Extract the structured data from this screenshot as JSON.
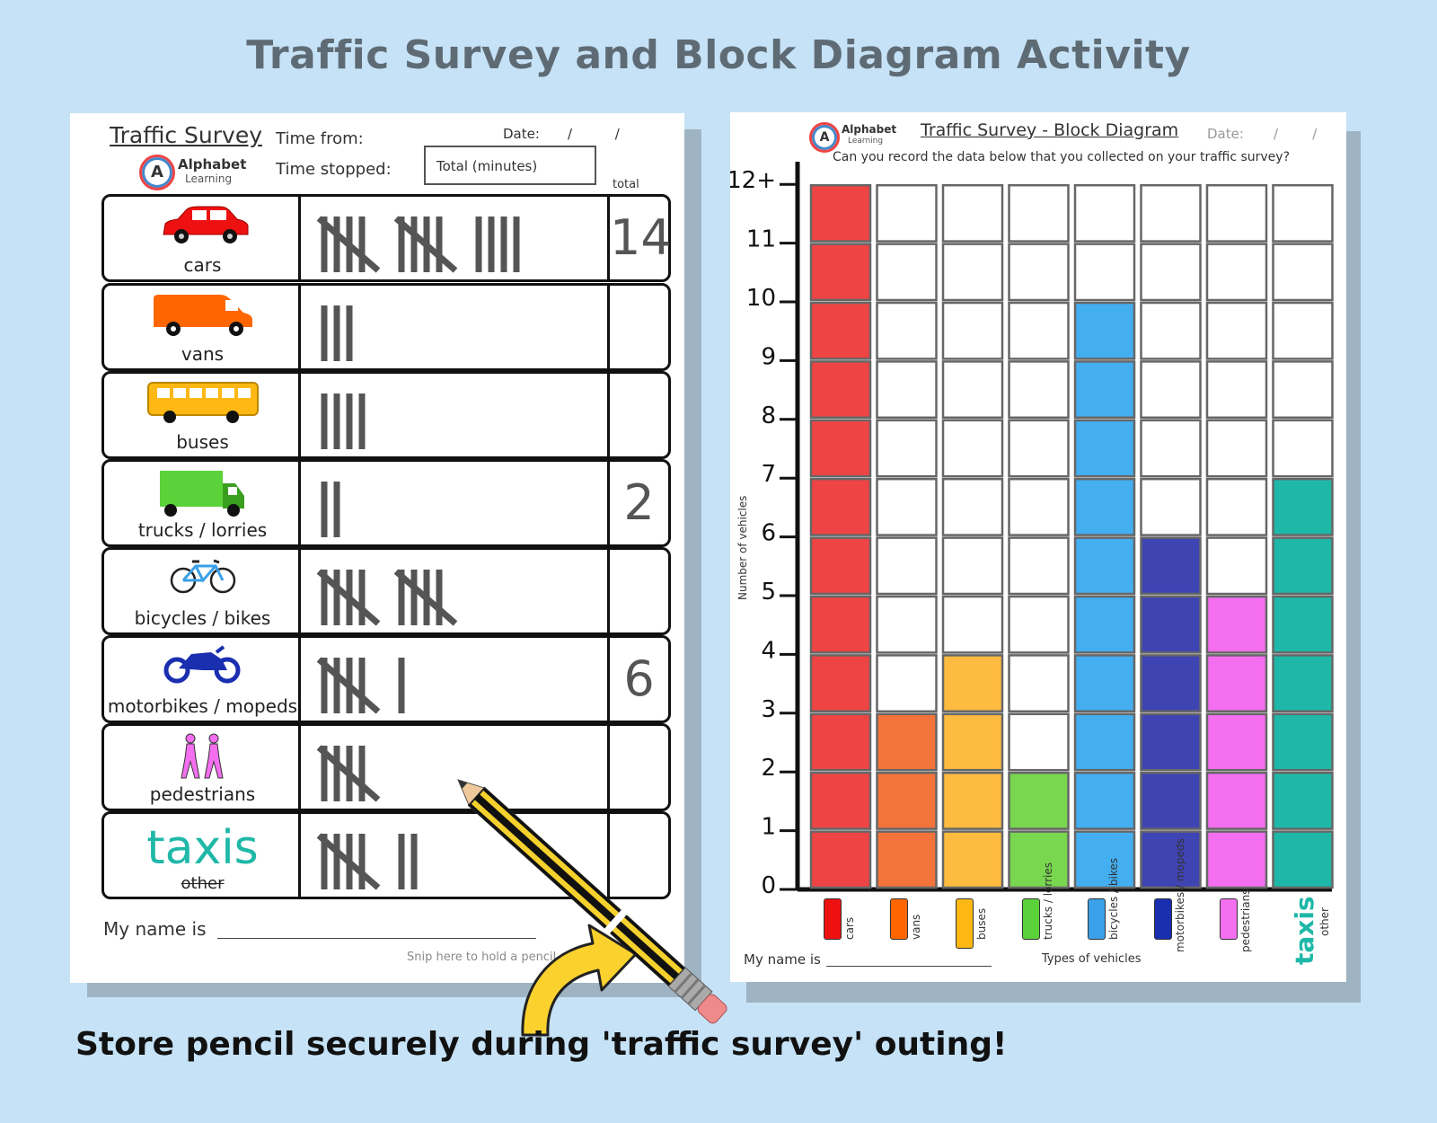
{
  "title": "Traffic Survey and Block Diagram Activity",
  "footer": "Store pencil securely during 'traffic survey' outing!",
  "survey": {
    "title": "Traffic Survey",
    "time_from": "Time from:",
    "time_stopped": "Time stopped:",
    "date_label": "Date:",
    "date_sep": "/          /",
    "total_minutes": "Total (minutes)",
    "total_header": "total",
    "brand": "Alphabet",
    "brand_sub": "Learning",
    "logo_letter": "A",
    "name_label": "My name is",
    "snip": "Snip here to hold a pencil",
    "rows": [
      {
        "label": "cars",
        "tally": 14,
        "total": "14",
        "icon": "car-icon"
      },
      {
        "label": "vans",
        "tally": 3,
        "total": "",
        "icon": "van-icon"
      },
      {
        "label": "buses",
        "tally": 4,
        "total": "",
        "icon": "bus-icon"
      },
      {
        "label": "trucks / lorries",
        "tally": 2,
        "total": "2",
        "icon": "truck-icon"
      },
      {
        "label": "bicycles / bikes",
        "tally": 10,
        "total": "",
        "icon": "bicycle-icon"
      },
      {
        "label": "motorbikes / mopeds",
        "tally": 6,
        "total": "6",
        "icon": "motorbike-icon"
      },
      {
        "label": "pedestrians",
        "tally": 5,
        "total": "",
        "icon": "pedestrians-icon"
      },
      {
        "label": "taxis",
        "sub": "other",
        "tally": 7,
        "total": "",
        "icon": "taxi-text"
      }
    ]
  },
  "block": {
    "title": "Traffic Survey - Block Diagram",
    "brand": "Alphabet",
    "brand_sub": "Learning",
    "date_label": "Date:",
    "date_sep": "/        /",
    "question": "Can you record the data below that you collected on your traffic survey?",
    "ylabel": "Number of vehicles",
    "xlabel": "Types of vehicles",
    "name_label": "My name is",
    "taxis": "taxis",
    "other": "other"
  },
  "chart_data": {
    "type": "bar",
    "categories": [
      "cars",
      "vans",
      "buses",
      "trucks / lorries",
      "bicycles / bikes",
      "motorbikes / mopeds",
      "pedestrians",
      "taxis"
    ],
    "values": [
      12,
      3,
      4,
      2,
      10,
      6,
      5,
      7
    ],
    "colors": [
      "#ef4444",
      "#f4733a",
      "#fdbb3f",
      "#78d64f",
      "#43aef0",
      "#3f44b3",
      "#f46ef0",
      "#1fb8a8"
    ],
    "ylim": [
      0,
      12
    ],
    "yticks": [
      "0",
      "1",
      "2",
      "3",
      "4",
      "5",
      "6",
      "7",
      "8",
      "9",
      "10",
      "11",
      "12+"
    ],
    "xlabel": "Types of vehicles",
    "ylabel": "Number of vehicles"
  }
}
